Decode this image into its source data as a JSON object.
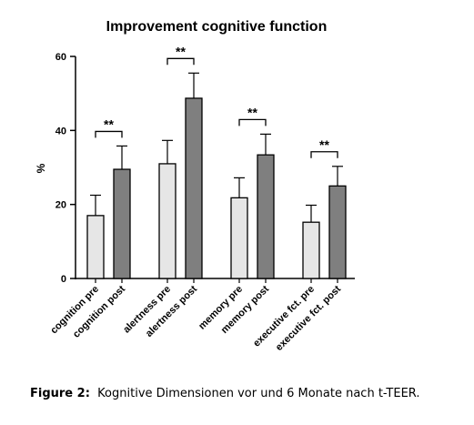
{
  "chart_data": {
    "type": "bar",
    "title": "Improvement cognitive function",
    "y_label": "%",
    "categories": [
      "cognition pre",
      "cognition post",
      "alertness pre",
      "alertness post",
      "memory pre",
      "memory post",
      "executive fct. pre",
      "executive fct. post"
    ],
    "values": [
      17,
      29.5,
      31,
      48.7,
      21.8,
      33.4,
      15.2,
      25
    ],
    "errors": [
      5.5,
      6.3,
      6.3,
      6.8,
      5.4,
      5.6,
      4.6,
      5.3
    ],
    "colors": [
      "#e6e6e6",
      "#7f7f7f",
      "#e6e6e6",
      "#7f7f7f",
      "#e6e6e6",
      "#7f7f7f",
      "#e6e6e6",
      "#7f7f7f"
    ],
    "annotations": [
      "**",
      "**",
      "**",
      "**"
    ],
    "ylim": [
      0,
      60
    ],
    "yticks": [
      0,
      20,
      40,
      60
    ],
    "grid": false
  },
  "caption": {
    "label": "Figure 2:",
    "text": "Kognitive Dimensionen vor und 6 Monate nach t-TEER."
  }
}
